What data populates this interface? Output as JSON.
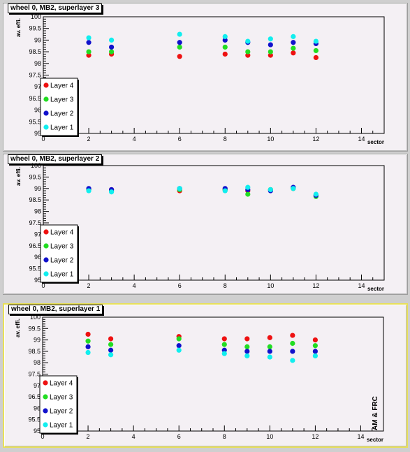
{
  "colors": {
    "layer4": "#ee1111",
    "layer3": "#22dd22",
    "layer2": "#1111cc",
    "layer1": "#11eeee",
    "pad_selected_border": "#e8e05a"
  },
  "side_note": "AM & FRC",
  "chart_data": [
    {
      "type": "scatter",
      "title": "wheel 0, MB2, superlayer 3",
      "xlabel": "sector",
      "ylabel": "av. effi.",
      "xlim": [
        0,
        15
      ],
      "ylim": [
        95,
        100
      ],
      "xticks": [
        "0",
        "2",
        "4",
        "6",
        "8",
        "10",
        "12",
        "14"
      ],
      "yticks": [
        "95",
        "95.5",
        "96",
        "96.5",
        "97",
        "97.5",
        "98",
        "98.5",
        "99",
        "99.5",
        "100"
      ],
      "legend": "bottom-left",
      "categories": [
        2,
        3,
        6,
        8,
        9,
        10,
        11,
        12
      ],
      "series": [
        {
          "name": "Layer 4",
          "values": [
            98.35,
            98.4,
            98.3,
            98.4,
            98.35,
            98.35,
            98.45,
            98.25
          ]
        },
        {
          "name": "Layer 3",
          "values": [
            98.5,
            98.5,
            98.7,
            98.7,
            98.5,
            98.5,
            98.65,
            98.55
          ]
        },
        {
          "name": "Layer 2",
          "values": [
            98.9,
            98.7,
            98.9,
            99.0,
            98.9,
            98.8,
            98.9,
            98.85
          ]
        },
        {
          "name": "Layer 1",
          "values": [
            99.1,
            99.0,
            99.25,
            99.15,
            98.95,
            99.05,
            99.15,
            98.95
          ]
        }
      ]
    },
    {
      "type": "scatter",
      "title": "wheel 0, MB2, superlayer 2",
      "xlabel": "sector",
      "ylabel": "av. effi.",
      "xlim": [
        0,
        15
      ],
      "ylim": [
        95,
        100
      ],
      "xticks": [
        "0",
        "2",
        "4",
        "6",
        "8",
        "10",
        "12",
        "14"
      ],
      "yticks": [
        "95",
        "95.5",
        "96",
        "96.5",
        "97",
        "97.5",
        "98",
        "98.5",
        "99",
        "99.5",
        "100"
      ],
      "legend": "bottom-left",
      "categories": [
        2,
        3,
        6,
        8,
        9,
        10,
        11,
        12
      ],
      "series": [
        {
          "name": "Layer 4",
          "values": [
            98.95,
            98.95,
            98.9,
            98.95,
            98.9,
            98.95,
            99.0,
            98.7
          ]
        },
        {
          "name": "Layer 3",
          "values": [
            98.95,
            98.9,
            98.95,
            98.95,
            98.75,
            98.95,
            99.0,
            98.65
          ]
        },
        {
          "name": "Layer 2",
          "values": [
            99.0,
            98.95,
            99.0,
            99.0,
            98.95,
            98.9,
            99.05,
            98.7
          ]
        },
        {
          "name": "Layer 1",
          "values": [
            98.9,
            98.85,
            99.0,
            98.9,
            99.05,
            98.95,
            99.0,
            98.75
          ]
        }
      ]
    },
    {
      "type": "scatter",
      "title": "wheel 0, MB2, superlayer 1",
      "xlabel": "sector",
      "ylabel": "av. effi.",
      "xlim": [
        0,
        15
      ],
      "ylim": [
        95,
        100
      ],
      "xticks": [
        "0",
        "2",
        "4",
        "6",
        "8",
        "10",
        "12",
        "14"
      ],
      "yticks": [
        "95",
        "95.5",
        "96",
        "96.5",
        "97",
        "97.5",
        "98",
        "98.5",
        "99",
        "99.5",
        "100"
      ],
      "legend": "bottom-left",
      "categories": [
        2,
        3,
        6,
        8,
        9,
        10,
        11,
        12
      ],
      "series": [
        {
          "name": "Layer 4",
          "values": [
            99.25,
            99.05,
            99.15,
            99.05,
            99.05,
            99.1,
            99.2,
            99.0
          ]
        },
        {
          "name": "Layer 3",
          "values": [
            98.95,
            98.8,
            99.05,
            98.8,
            98.7,
            98.7,
            98.85,
            98.75
          ]
        },
        {
          "name": "Layer 2",
          "values": [
            98.7,
            98.55,
            98.75,
            98.55,
            98.5,
            98.5,
            98.5,
            98.5
          ]
        },
        {
          "name": "Layer 1",
          "values": [
            98.45,
            98.35,
            98.55,
            98.4,
            98.3,
            98.25,
            98.1,
            98.3
          ]
        }
      ]
    }
  ]
}
